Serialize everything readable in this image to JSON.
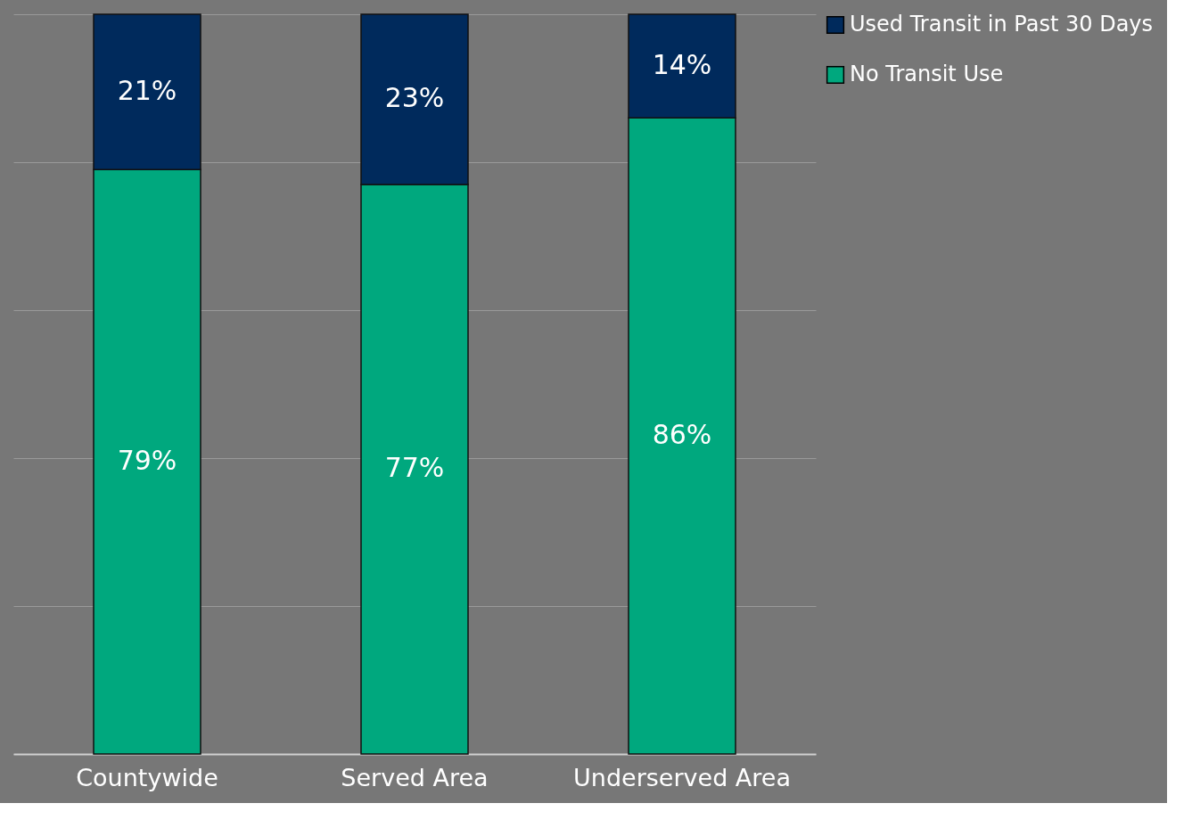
{
  "chart_data": {
    "type": "bar",
    "stacked": true,
    "categories": [
      "Countywide",
      "Served Area",
      "Underserved Area"
    ],
    "series": [
      {
        "name": "No Transit Use",
        "color": "#00a87e",
        "values": [
          79,
          77,
          86
        ],
        "value_labels": [
          "79%",
          "77%",
          "86%"
        ]
      },
      {
        "name": "Used Transit in Past 30 Days",
        "color": "#002a5c",
        "values": [
          21,
          23,
          14
        ],
        "value_labels": [
          "21%",
          "23%",
          "14%"
        ]
      }
    ],
    "tick_labels": "x",
    "grid": "y",
    "legend": "right"
  }
}
